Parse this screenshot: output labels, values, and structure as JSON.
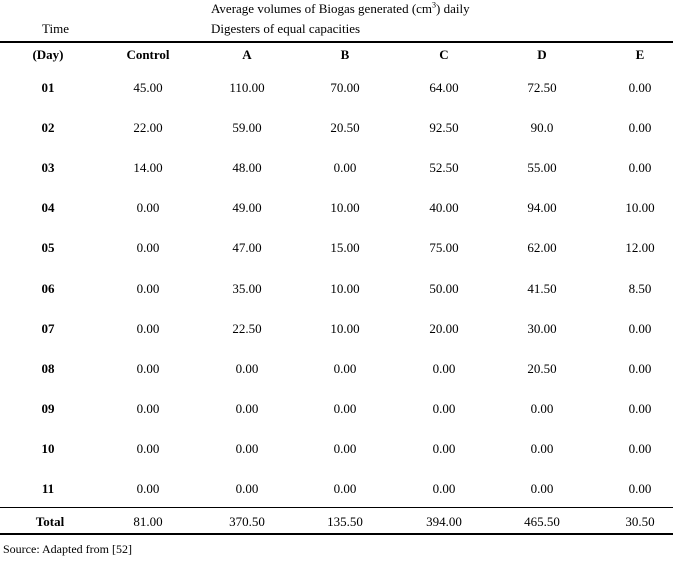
{
  "table": {
    "title_prefix": "Average volumes of Biogas generated (cm",
    "title_sup": "3",
    "title_suffix": ") daily",
    "time_label": "Time",
    "subtitle": "Digesters of equal capacities",
    "columns": [
      "(Day)",
      "Control",
      "A",
      "B",
      "C",
      "D",
      "E"
    ],
    "rows": [
      [
        "01",
        "45.00",
        "110.00",
        "70.00",
        "64.00",
        "72.50",
        "0.00"
      ],
      [
        "02",
        "22.00",
        "59.00",
        "20.50",
        "92.50",
        "90.0",
        "0.00"
      ],
      [
        "03",
        "14.00",
        "48.00",
        "0.00",
        "52.50",
        "55.00",
        "0.00"
      ],
      [
        "04",
        "0.00",
        "49.00",
        "10.00",
        "40.00",
        "94.00",
        "10.00"
      ],
      [
        "05",
        "0.00",
        "47.00",
        "15.00",
        "75.00",
        "62.00",
        "12.00"
      ],
      [
        "06",
        "0.00",
        "35.00",
        "10.00",
        "50.00",
        "41.50",
        "8.50"
      ],
      [
        "07",
        "0.00",
        "22.50",
        "10.00",
        "20.00",
        "30.00",
        "0.00"
      ],
      [
        "08",
        "0.00",
        "0.00",
        "0.00",
        "0.00",
        "20.50",
        "0.00"
      ],
      [
        "09",
        "0.00",
        "0.00",
        "0.00",
        "0.00",
        "0.00",
        "0.00"
      ],
      [
        "10",
        "0.00",
        "0.00",
        "0.00",
        "0.00",
        "0.00",
        "0.00"
      ],
      [
        "11",
        "0.00",
        "0.00",
        "0.00",
        "0.00",
        "0.00",
        "0.00"
      ]
    ],
    "total_row": [
      "Total",
      "81.00",
      "370.50",
      "135.50",
      "394.00",
      "465.50",
      "30.50"
    ],
    "source": "Source: Adapted from [52]"
  }
}
